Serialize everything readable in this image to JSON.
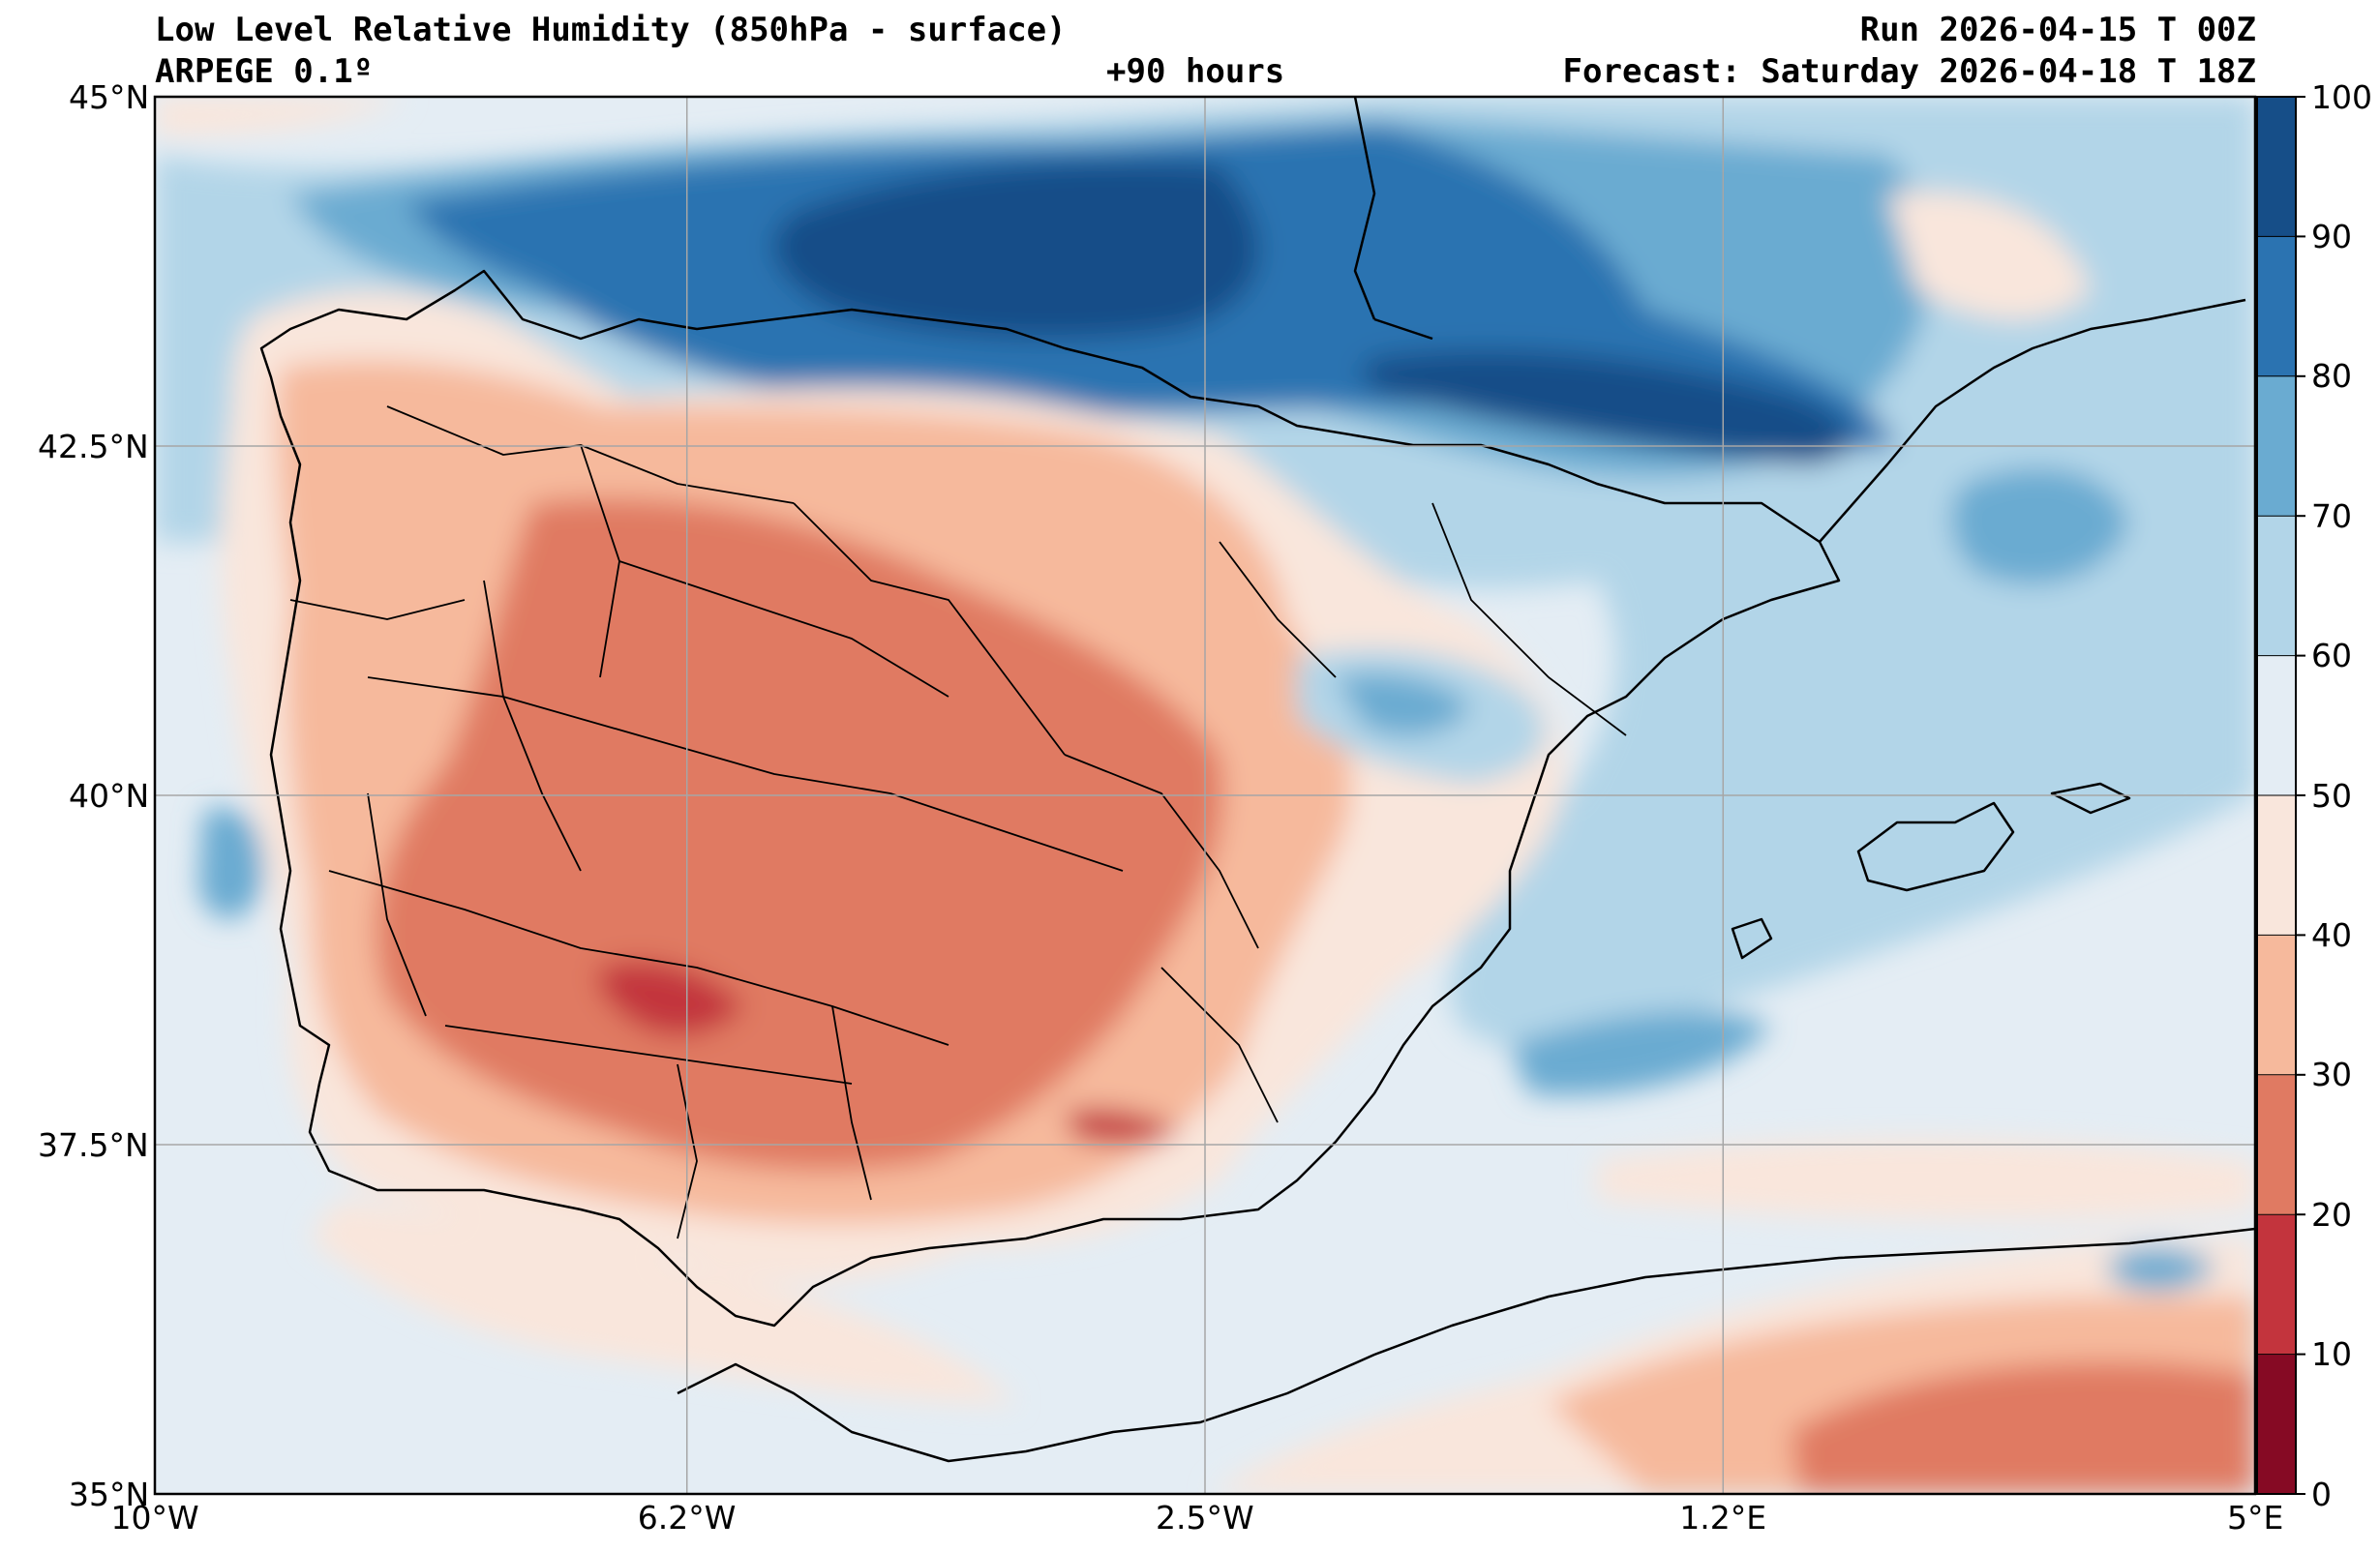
{
  "header": {
    "title": "Low Level Relative Humidity (850hPa - surface)",
    "model": "ARPEGE 0.1º",
    "run": "Run 2026-04-15 T 00Z",
    "lead": "+90 hours",
    "forecast": "Forecast: Saturday 2026-04-18 T 18Z"
  },
  "map": {
    "lon_min": -10,
    "lon_max": 5,
    "lat_min": 35,
    "lat_max": 45,
    "lat_ticks": [
      {
        "value": 45,
        "label": "45°N"
      },
      {
        "value": 42.5,
        "label": "42.5°N"
      },
      {
        "value": 40,
        "label": "40°N"
      },
      {
        "value": 37.5,
        "label": "37.5°N"
      },
      {
        "value": 35,
        "label": "35°N"
      }
    ],
    "lon_ticks": [
      {
        "value": -10,
        "label": "10°W"
      },
      {
        "value": -6.2,
        "label": "6.2°W"
      },
      {
        "value": -2.5,
        "label": "2.5°W"
      },
      {
        "value": 1.2,
        "label": "1.2°E"
      },
      {
        "value": 5,
        "label": "5°E"
      }
    ]
  },
  "colorbar": {
    "levels": [
      0,
      10,
      20,
      30,
      40,
      50,
      60,
      70,
      80,
      90,
      100
    ],
    "labels": [
      "0",
      "10",
      "20",
      "30",
      "40",
      "50",
      "60",
      "70",
      "80",
      "90",
      "100"
    ],
    "colors": [
      "#860a24",
      "#c3343d",
      "#e07a62",
      "#f6b99c",
      "#f9e6dc",
      "#e4edf4",
      "#b2d5e8",
      "#6aabd1",
      "#2b73b1",
      "#164e88"
    ]
  }
}
